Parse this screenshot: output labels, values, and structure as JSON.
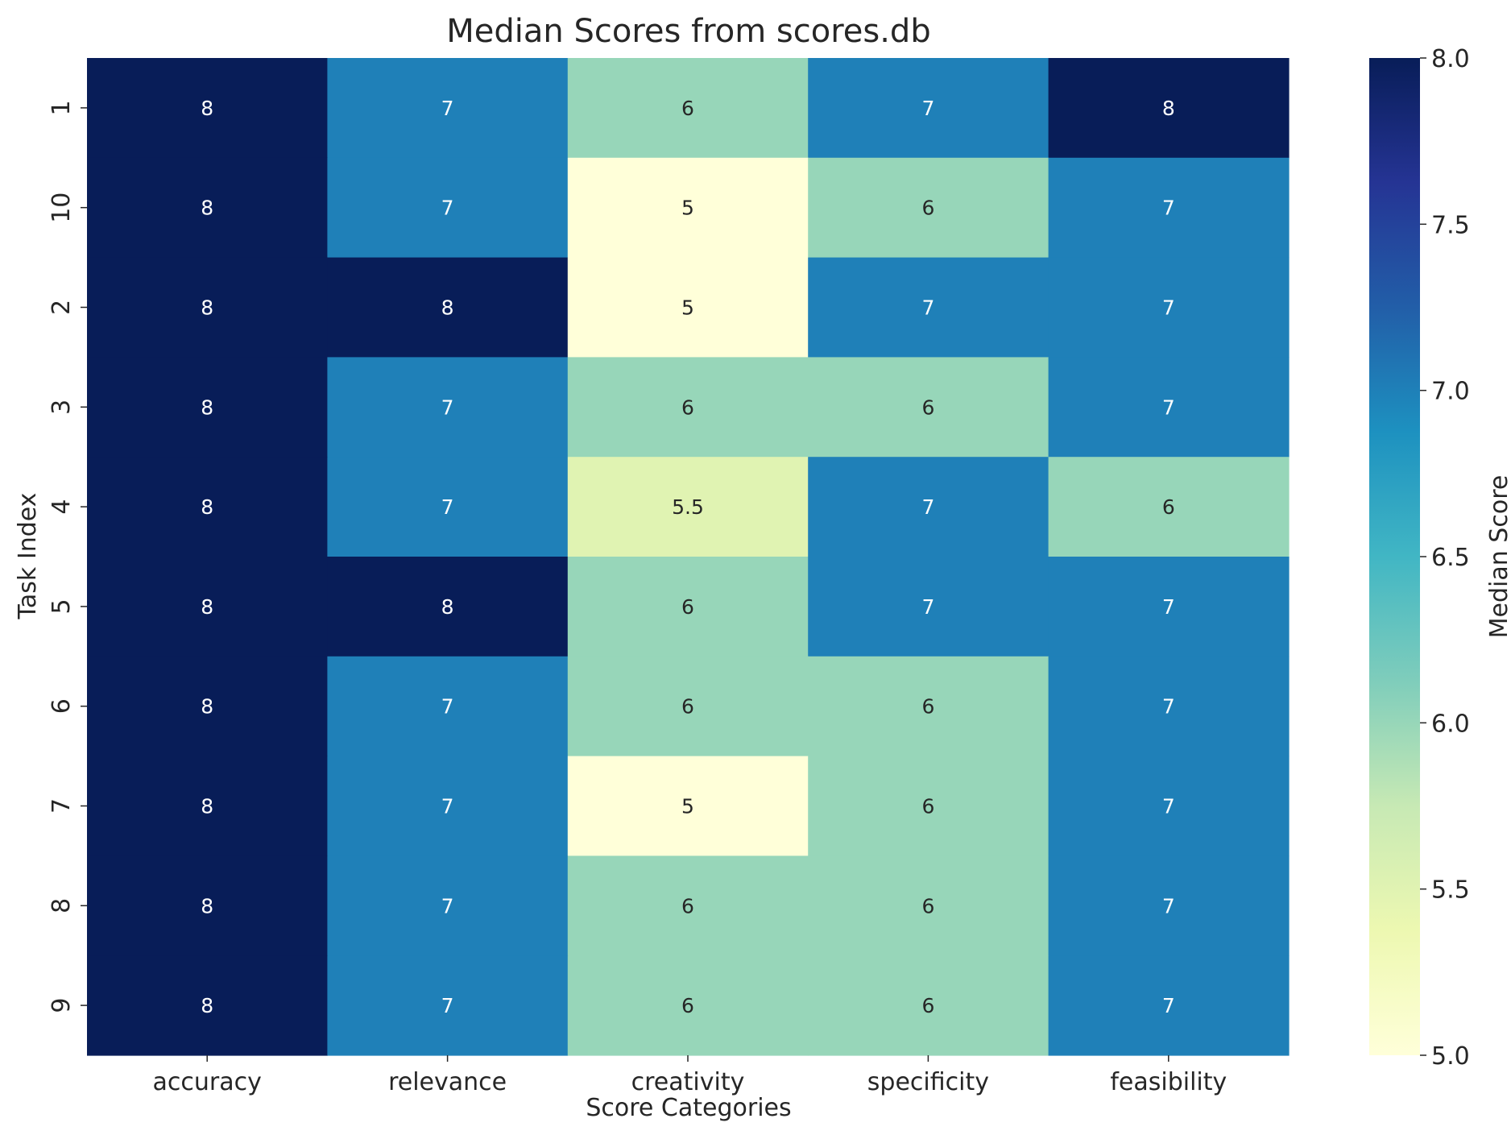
{
  "chart_data": {
    "type": "heatmap",
    "title": "Median Scores from scores.db",
    "xlabel": "Score Categories",
    "ylabel": "Task Index",
    "colorbar_label": "Median Score",
    "colormap": "YlGnBu",
    "vmin": 5.0,
    "vmax": 8.0,
    "colorbar_ticks": [
      "5.0",
      "5.5",
      "6.0",
      "6.5",
      "7.0",
      "7.5",
      "8.0"
    ],
    "x_categories": [
      "accuracy",
      "relevance",
      "creativity",
      "specificity",
      "feasibility"
    ],
    "y_categories": [
      "1",
      "10",
      "2",
      "3",
      "4",
      "5",
      "6",
      "7",
      "8",
      "9"
    ],
    "values": [
      [
        8,
        7,
        6,
        7,
        8
      ],
      [
        8,
        7,
        5,
        6,
        7
      ],
      [
        8,
        8,
        5,
        7,
        7
      ],
      [
        8,
        7,
        6,
        6,
        7
      ],
      [
        8,
        7,
        5.5,
        7,
        6
      ],
      [
        8,
        8,
        6,
        7,
        7
      ],
      [
        8,
        7,
        6,
        6,
        7
      ],
      [
        8,
        7,
        5,
        6,
        7
      ],
      [
        8,
        7,
        6,
        6,
        7
      ],
      [
        8,
        7,
        6,
        6,
        7
      ]
    ],
    "cell_labels": [
      [
        "8",
        "7",
        "6",
        "7",
        "8"
      ],
      [
        "8",
        "7",
        "5",
        "6",
        "7"
      ],
      [
        "8",
        "8",
        "5",
        "7",
        "7"
      ],
      [
        "8",
        "7",
        "6",
        "6",
        "7"
      ],
      [
        "8",
        "7",
        "5.5",
        "7",
        "6"
      ],
      [
        "8",
        "8",
        "6",
        "7",
        "7"
      ],
      [
        "8",
        "7",
        "6",
        "6",
        "7"
      ],
      [
        "8",
        "7",
        "5",
        "6",
        "7"
      ],
      [
        "8",
        "7",
        "6",
        "6",
        "7"
      ],
      [
        "8",
        "7",
        "6",
        "6",
        "7"
      ]
    ],
    "grid": false
  }
}
